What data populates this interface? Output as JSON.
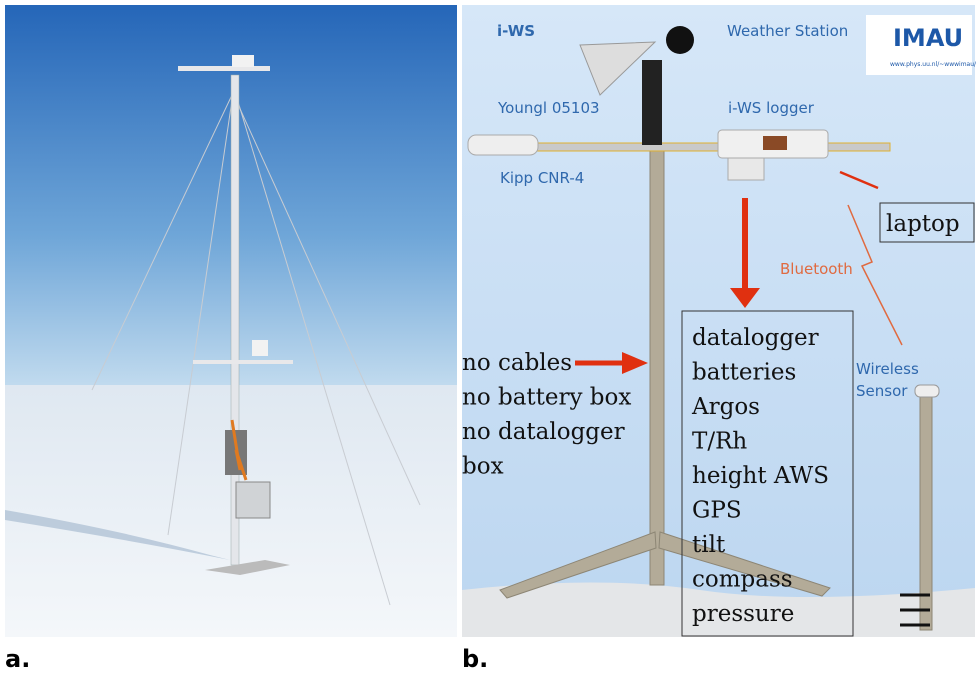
{
  "panels": [
    {
      "label": "a."
    },
    {
      "label": "b.",
      "header": {
        "left": "i-WS",
        "right": "Weather Station",
        "logo": "IMAU",
        "logo_url": "www.phys.uu.nl/~wwwimau/"
      },
      "components": {
        "wind": "Youngl 05103",
        "logger": "i-WS logger",
        "radiation": "Kipp CNR-4",
        "laptop": "laptop",
        "link": "Bluetooth",
        "sensor_lines": [
          "Wireless",
          "Sensor"
        ]
      },
      "notes": [
        "no cables",
        "no battery box",
        "no datalogger",
        "box"
      ],
      "contents": [
        "datalogger",
        "batteries",
        "Argos",
        "T/Rh",
        "height AWS",
        "GPS",
        "tilt",
        "compass",
        "pressure"
      ]
    }
  ]
}
